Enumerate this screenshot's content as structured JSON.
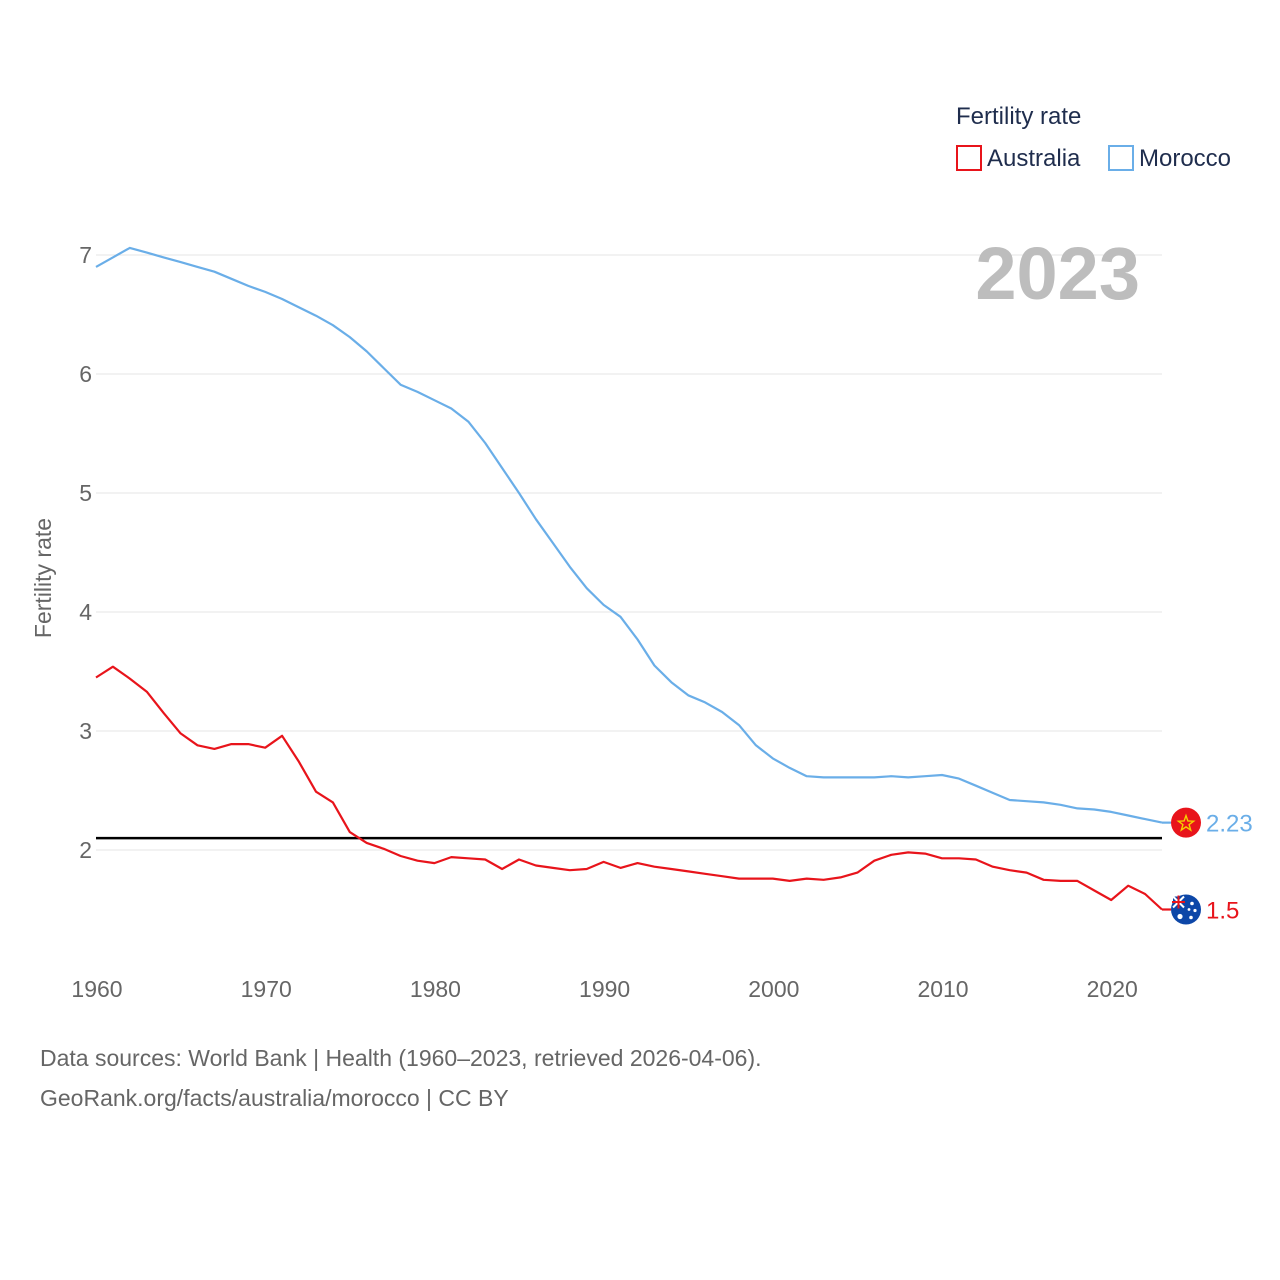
{
  "chart_data": {
    "type": "line",
    "legend": {
      "title": "Fertility rate",
      "position": "top-right"
    },
    "ylabel": "Fertility rate",
    "xlabel": "",
    "xlim": [
      1960,
      2023
    ],
    "ylim": [
      1.1,
      7.3
    ],
    "x_ticks": [
      1960,
      1970,
      1980,
      1990,
      2000,
      2010,
      2020
    ],
    "y_ticks": [
      2,
      3,
      4,
      5,
      6,
      7
    ],
    "reference_line": 2.1,
    "current_year": "2023",
    "x": [
      1960,
      1961,
      1962,
      1963,
      1964,
      1965,
      1966,
      1967,
      1968,
      1969,
      1970,
      1971,
      1972,
      1973,
      1974,
      1975,
      1976,
      1977,
      1978,
      1979,
      1980,
      1981,
      1982,
      1983,
      1984,
      1985,
      1986,
      1987,
      1988,
      1989,
      1990,
      1991,
      1992,
      1993,
      1994,
      1995,
      1996,
      1997,
      1998,
      1999,
      2000,
      2001,
      2002,
      2003,
      2004,
      2005,
      2006,
      2007,
      2008,
      2009,
      2010,
      2011,
      2012,
      2013,
      2014,
      2015,
      2016,
      2017,
      2018,
      2019,
      2020,
      2021,
      2022,
      2023
    ],
    "series": [
      {
        "name": "Australia",
        "color": "#e8141b",
        "end_label": "1.5",
        "flag": "australia",
        "values": [
          3.45,
          3.54,
          3.44,
          3.33,
          3.15,
          2.98,
          2.88,
          2.85,
          2.89,
          2.89,
          2.86,
          2.96,
          2.74,
          2.49,
          2.4,
          2.15,
          2.06,
          2.01,
          1.95,
          1.91,
          1.89,
          1.94,
          1.93,
          1.92,
          1.84,
          1.92,
          1.87,
          1.85,
          1.83,
          1.84,
          1.9,
          1.85,
          1.89,
          1.86,
          1.84,
          1.82,
          1.8,
          1.78,
          1.76,
          1.76,
          1.76,
          1.74,
          1.76,
          1.75,
          1.77,
          1.81,
          1.91,
          1.96,
          1.98,
          1.97,
          1.93,
          1.93,
          1.92,
          1.86,
          1.83,
          1.81,
          1.75,
          1.74,
          1.74,
          1.66,
          1.58,
          1.7,
          1.63,
          1.5
        ]
      },
      {
        "name": "Morocco",
        "color": "#6aaee8",
        "end_label": "2.23",
        "flag": "morocco",
        "values": [
          6.9,
          6.98,
          7.06,
          7.02,
          6.98,
          6.94,
          6.9,
          6.86,
          6.8,
          6.74,
          6.69,
          6.63,
          6.56,
          6.49,
          6.41,
          6.31,
          6.19,
          6.05,
          5.91,
          5.85,
          5.78,
          5.71,
          5.6,
          5.42,
          5.21,
          5.0,
          4.78,
          4.58,
          4.38,
          4.2,
          4.06,
          3.96,
          3.77,
          3.55,
          3.41,
          3.3,
          3.24,
          3.16,
          3.05,
          2.88,
          2.77,
          2.69,
          2.62,
          2.61,
          2.61,
          2.61,
          2.61,
          2.62,
          2.61,
          2.62,
          2.63,
          2.6,
          2.54,
          2.48,
          2.42,
          2.41,
          2.4,
          2.38,
          2.35,
          2.34,
          2.32,
          2.29,
          2.26,
          2.23
        ]
      }
    ]
  },
  "footer": {
    "line1": "Data sources: World Bank | Health (1960–2023, retrieved 2026-04-06).",
    "line2": "GeoRank.org/facts/australia/morocco | CC BY"
  }
}
